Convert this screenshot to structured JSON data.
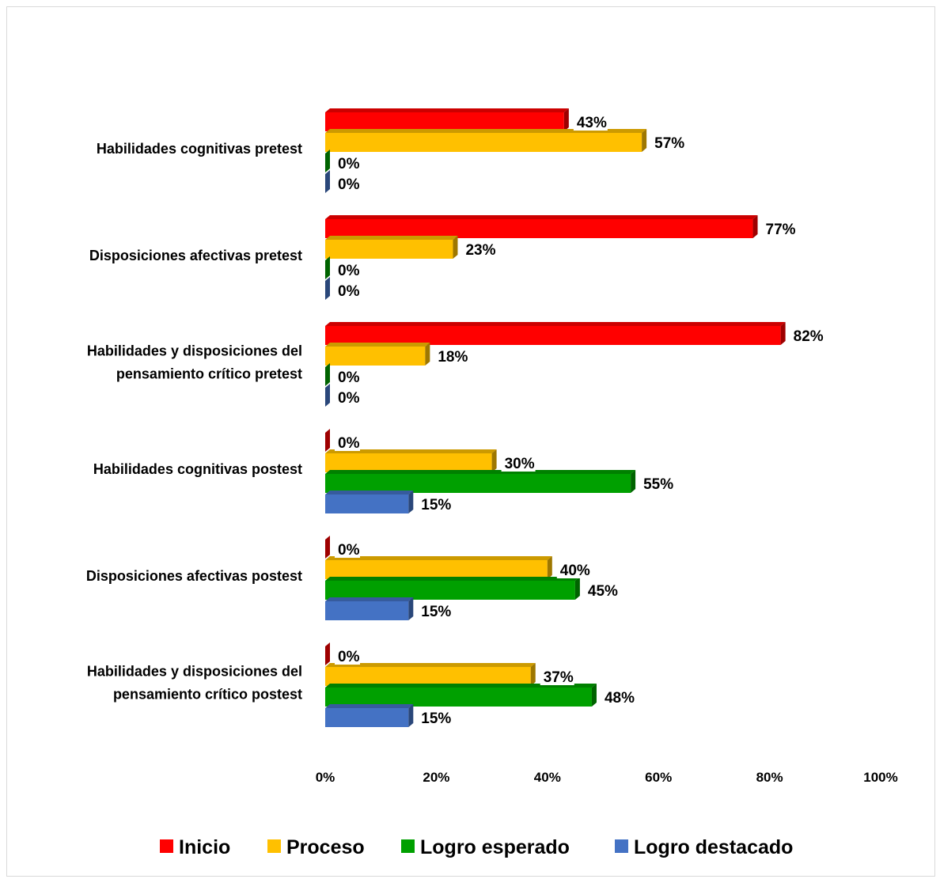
{
  "chart_data": {
    "type": "bar",
    "orientation": "horizontal",
    "style": "3d-clustered",
    "title": "",
    "xlabel": "",
    "ylabel": "",
    "xlim": [
      0,
      100
    ],
    "x_ticks": [
      "0%",
      "20%",
      "40%",
      "60%",
      "80%",
      "100%"
    ],
    "grid": false,
    "legend_position": "bottom",
    "categories": [
      [
        "Habilidades cognitivas pretest"
      ],
      [
        "Disposiciones afectivas pretest"
      ],
      [
        "Habilidades y disposiciones del",
        "pensamiento crítico pretest"
      ],
      [
        "Habilidades cognitivas postest"
      ],
      [
        "Disposiciones afectivas postest"
      ],
      [
        "Habilidades y disposiciones del",
        "pensamiento crítico postest"
      ]
    ],
    "series": [
      {
        "name": "Inicio",
        "color": "#ff0000",
        "values": [
          43,
          77,
          82,
          0,
          0,
          0
        ],
        "labels": [
          "43%",
          "77%",
          "82%",
          "0%",
          "0%",
          "0%"
        ]
      },
      {
        "name": "Proceso",
        "color": "#ffc000",
        "values": [
          57,
          23,
          18,
          30,
          40,
          37
        ],
        "labels": [
          "57%",
          "23%",
          "18%",
          "30%",
          "40%",
          "37%"
        ]
      },
      {
        "name": "Logro esperado",
        "color": "#00a000",
        "values": [
          0,
          0,
          0,
          55,
          45,
          48
        ],
        "labels": [
          "0%",
          "0%",
          "0%",
          "55%",
          "45%",
          "48%"
        ]
      },
      {
        "name": "Logro destacado",
        "color": "#4472c4",
        "values": [
          0,
          0,
          0,
          15,
          15,
          15
        ],
        "labels": [
          "0%",
          "0%",
          "0%",
          "15%",
          "15%",
          "15%"
        ]
      }
    ]
  }
}
